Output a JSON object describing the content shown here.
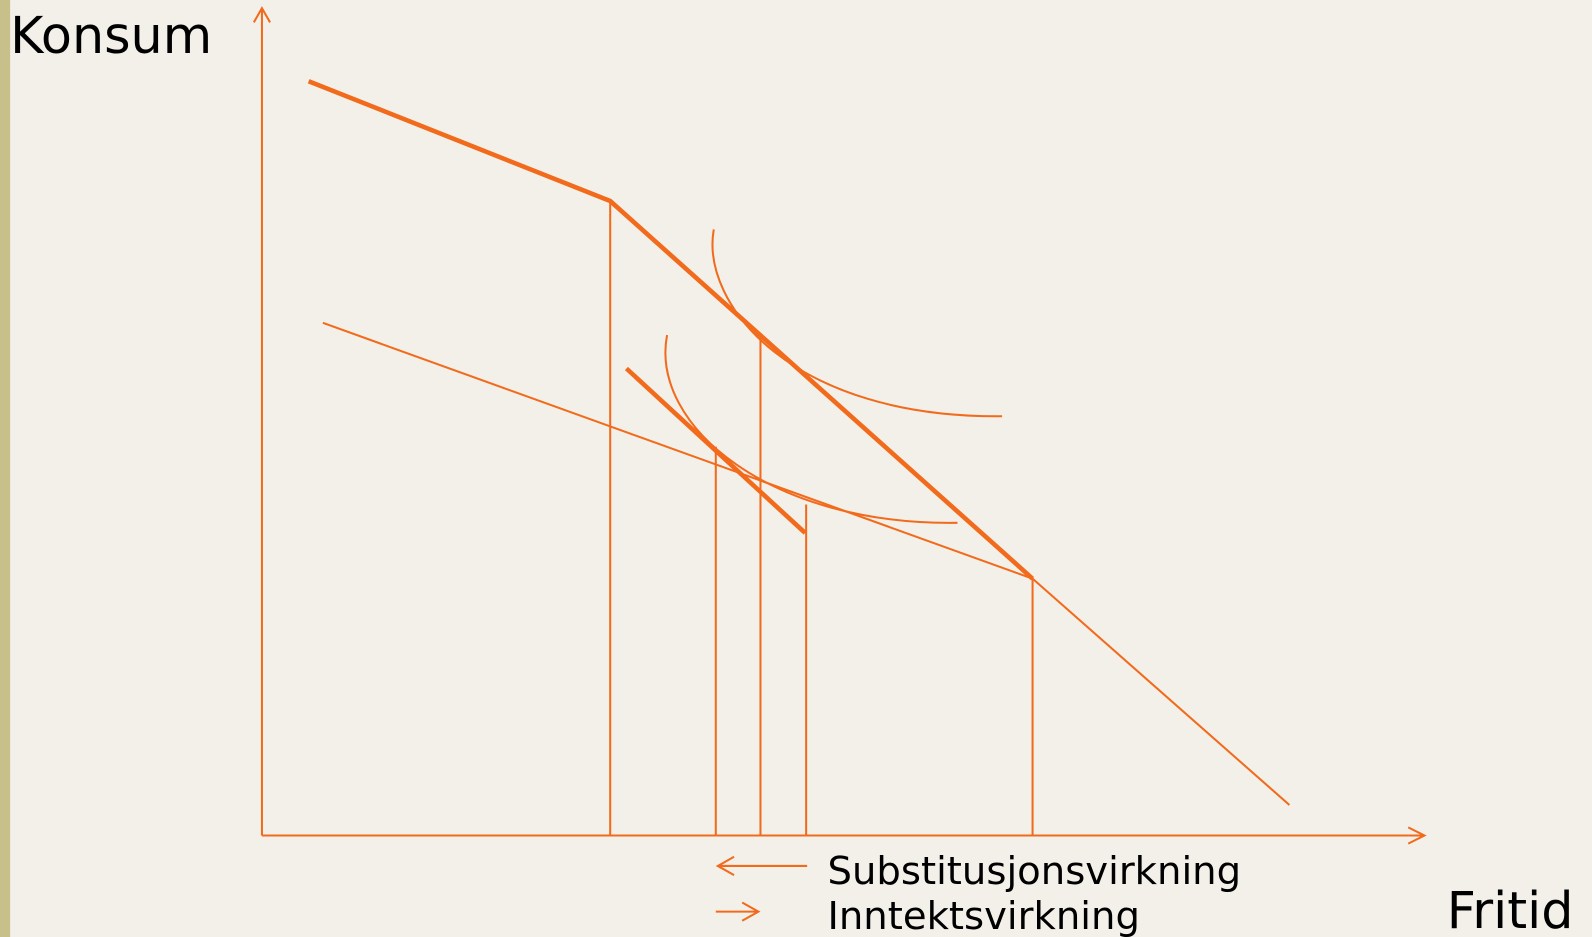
{
  "axes": {
    "y_label": "Konsum",
    "x_label": "Fritid"
  },
  "legend": {
    "items": [
      "Substitusjonsvirkning",
      "Inntektsvirkning"
    ]
  }
}
